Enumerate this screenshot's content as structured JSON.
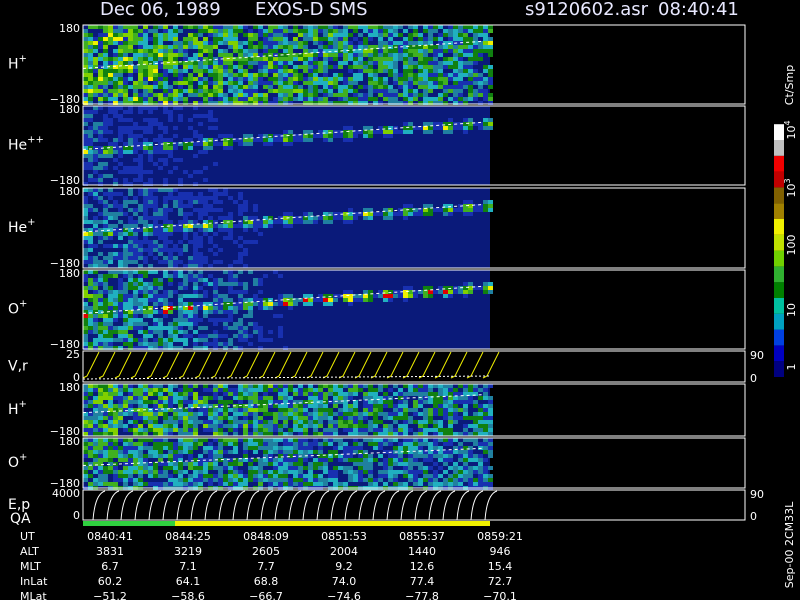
{
  "header": {
    "date": "Dec 06, 1989",
    "instrument": "EXOS-D SMS",
    "file": "s9120602.asr",
    "time": "08:40:41"
  },
  "panels": [
    {
      "label": "H",
      "sup": "+",
      "top": "180",
      "bottom": "−180"
    },
    {
      "label": "He",
      "sup": "++",
      "top": "180",
      "bottom": "−180"
    },
    {
      "label": "He",
      "sup": "+",
      "top": "180",
      "bottom": "−180"
    },
    {
      "label": "O",
      "sup": "+",
      "top": "180",
      "bottom": "−180"
    },
    {
      "label": "V,r",
      "top": "25",
      "bottom": "0",
      "right_top": "90",
      "right_bottom": "0"
    },
    {
      "label": "H",
      "sup": "+",
      "top": "180",
      "bottom": "−180"
    },
    {
      "label": "O",
      "sup": "+",
      "top": "180",
      "bottom": "−180"
    },
    {
      "label": "E,p",
      "top": "4000",
      "bottom": "0",
      "right_top": "90",
      "right_bottom": "0"
    }
  ],
  "qa_label": "QA",
  "colorbar": {
    "unit": "Ct/Smp",
    "ticks": [
      {
        "base": "1"
      },
      {
        "base": "10"
      },
      {
        "base": "100"
      },
      {
        "base": "10",
        "exp": "3"
      },
      {
        "base": "10",
        "exp": "4"
      }
    ]
  },
  "side_note": "Sep-00 2CM33L",
  "footer": {
    "rows": [
      [
        "UT",
        "0840:41",
        "0844:25",
        "0848:09",
        "0851:53",
        "0855:37",
        "0859:21"
      ],
      [
        "ALT",
        "3831",
        "3219",
        "2605",
        "2004",
        "1440",
        "946"
      ],
      [
        "MLT",
        "6.7",
        "7.1",
        "7.7",
        "9.2",
        "12.6",
        "15.4"
      ],
      [
        "InLat",
        "60.2",
        "64.1",
        "68.8",
        "74.0",
        "77.4",
        "72.7"
      ],
      [
        "MLat",
        "−51.2",
        "−58.6",
        "−66.7",
        "−74.6",
        "−77.8",
        "−70.1"
      ]
    ]
  }
}
